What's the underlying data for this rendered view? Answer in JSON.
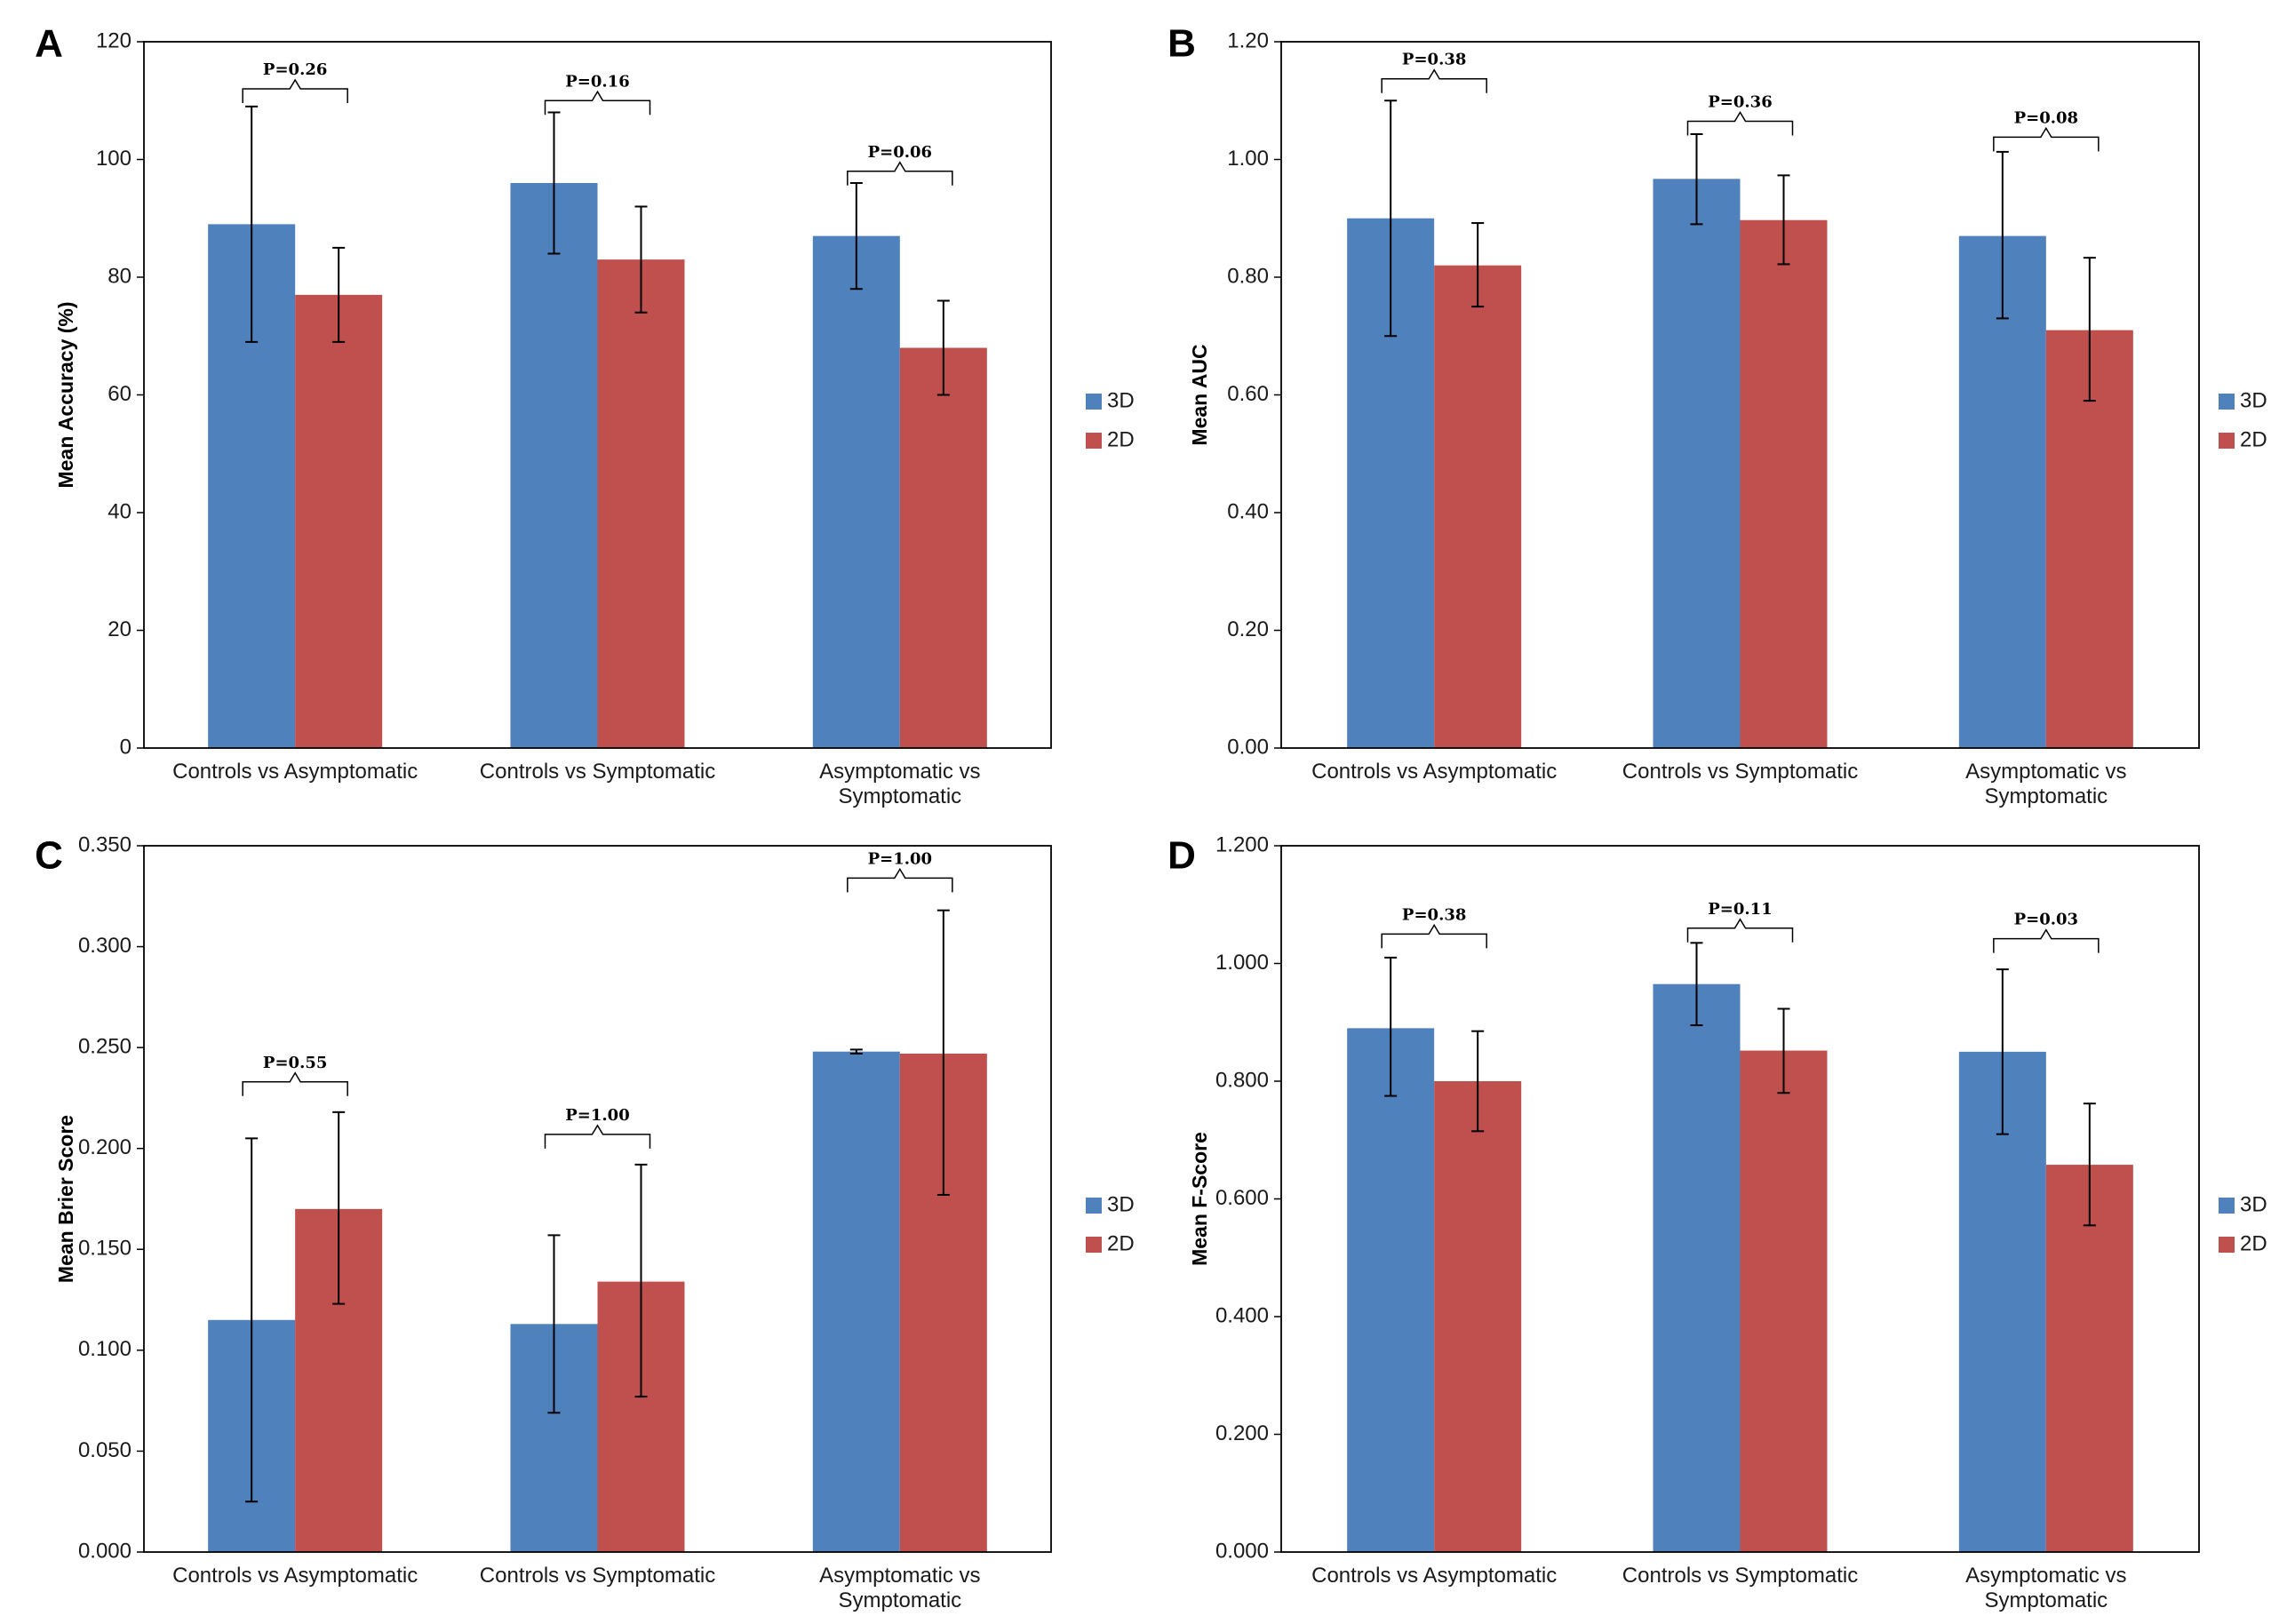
{
  "colors": {
    "s3d": "#4F81BD",
    "s2d": "#C0504D",
    "axis": "#000000",
    "err": "#000000"
  },
  "chart_data": [
    {
      "panel": "A",
      "type": "bar",
      "categories": [
        [
          "Controls vs Asymptomatic"
        ],
        [
          "Controls vs Symptomatic"
        ],
        [
          "Asymptomatic vs",
          "Symptomatic"
        ]
      ],
      "series": [
        {
          "name": "3D",
          "values": [
            89,
            96,
            87
          ],
          "err_low": [
            69,
            84,
            78
          ],
          "err_high": [
            109,
            108,
            96
          ]
        },
        {
          "name": "2D",
          "values": [
            77,
            83,
            68
          ],
          "err_low": [
            69,
            74,
            60
          ],
          "err_high": [
            85,
            92,
            76
          ]
        }
      ],
      "ylabel": "Mean Accuracy (%)",
      "ylim": [
        0,
        120
      ],
      "yticks": [
        "0",
        "20",
        "40",
        "60",
        "80",
        "100",
        "120"
      ],
      "pvalues": [
        {
          "label": "P=0.26",
          "bracket_y": 112
        },
        {
          "label": "P=0.16",
          "bracket_y": 110
        },
        {
          "label": "P=0.06",
          "bracket_y": 98
        }
      ]
    },
    {
      "panel": "B",
      "type": "bar",
      "categories": [
        [
          "Controls vs Asymptomatic"
        ],
        [
          "Controls vs Symptomatic"
        ],
        [
          "Asymptomatic vs",
          "Symptomatic"
        ]
      ],
      "series": [
        {
          "name": "3D",
          "values": [
            0.9,
            0.967,
            0.87
          ],
          "err_low": [
            0.7,
            0.89,
            0.73
          ],
          "err_high": [
            1.1,
            1.043,
            1.013
          ]
        },
        {
          "name": "2D",
          "values": [
            0.82,
            0.897,
            0.71
          ],
          "err_low": [
            0.75,
            0.822,
            0.59
          ],
          "err_high": [
            0.892,
            0.973,
            0.833
          ]
        }
      ],
      "ylabel": "Mean AUC",
      "ylim": [
        0,
        1.2
      ],
      "yticks": [
        "0.00",
        "0.20",
        "0.40",
        "0.60",
        "0.80",
        "1.00",
        "1.20"
      ],
      "pvalues": [
        {
          "label": "P=0.38",
          "bracket_y": 1.137
        },
        {
          "label": "P=0.36",
          "bracket_y": 1.065
        },
        {
          "label": "P=0.08",
          "bracket_y": 1.038
        }
      ]
    },
    {
      "panel": "C",
      "type": "bar",
      "categories": [
        [
          "Controls vs Asymptomatic"
        ],
        [
          "Controls vs Symptomatic"
        ],
        [
          "Asymptomatic vs",
          "Symptomatic"
        ]
      ],
      "series": [
        {
          "name": "3D",
          "values": [
            0.115,
            0.113,
            0.248
          ],
          "err_low": [
            0.025,
            0.069,
            0.247
          ],
          "err_high": [
            0.205,
            0.157,
            0.249
          ]
        },
        {
          "name": "2D",
          "values": [
            0.17,
            0.134,
            0.247
          ],
          "err_low": [
            0.123,
            0.077,
            0.177
          ],
          "err_high": [
            0.218,
            0.192,
            0.318
          ]
        }
      ],
      "ylabel": "Mean Brier Score",
      "ylim": [
        0,
        0.35
      ],
      "yticks": [
        "0.000",
        "0.050",
        "0.100",
        "0.150",
        "0.200",
        "0.250",
        "0.300",
        "0.350"
      ],
      "pvalues": [
        {
          "label": "P=0.55",
          "bracket_y": 0.233
        },
        {
          "label": "P=1.00",
          "bracket_y": 0.207
        },
        {
          "label": "P=1.00",
          "bracket_y": 0.334
        }
      ]
    },
    {
      "panel": "D",
      "type": "bar",
      "categories": [
        [
          "Controls vs Asymptomatic"
        ],
        [
          "Controls vs Symptomatic"
        ],
        [
          "Asymptomatic vs",
          "Symptomatic"
        ]
      ],
      "series": [
        {
          "name": "3D",
          "values": [
            0.89,
            0.965,
            0.85
          ],
          "err_low": [
            0.775,
            0.895,
            0.71
          ],
          "err_high": [
            1.01,
            1.035,
            0.99
          ]
        },
        {
          "name": "2D",
          "values": [
            0.8,
            0.852,
            0.658
          ],
          "err_low": [
            0.715,
            0.78,
            0.555
          ],
          "err_high": [
            0.885,
            0.923,
            0.762
          ]
        }
      ],
      "ylabel": "Mean F-Score",
      "ylim": [
        0,
        1.2
      ],
      "yticks": [
        "0.000",
        "0.200",
        "0.400",
        "0.600",
        "0.800",
        "1.000",
        "1.200"
      ],
      "pvalues": [
        {
          "label": "P=0.38",
          "bracket_y": 1.05
        },
        {
          "label": "P=0.11",
          "bracket_y": 1.06
        },
        {
          "label": "P=0.03",
          "bracket_y": 1.042
        }
      ]
    }
  ]
}
